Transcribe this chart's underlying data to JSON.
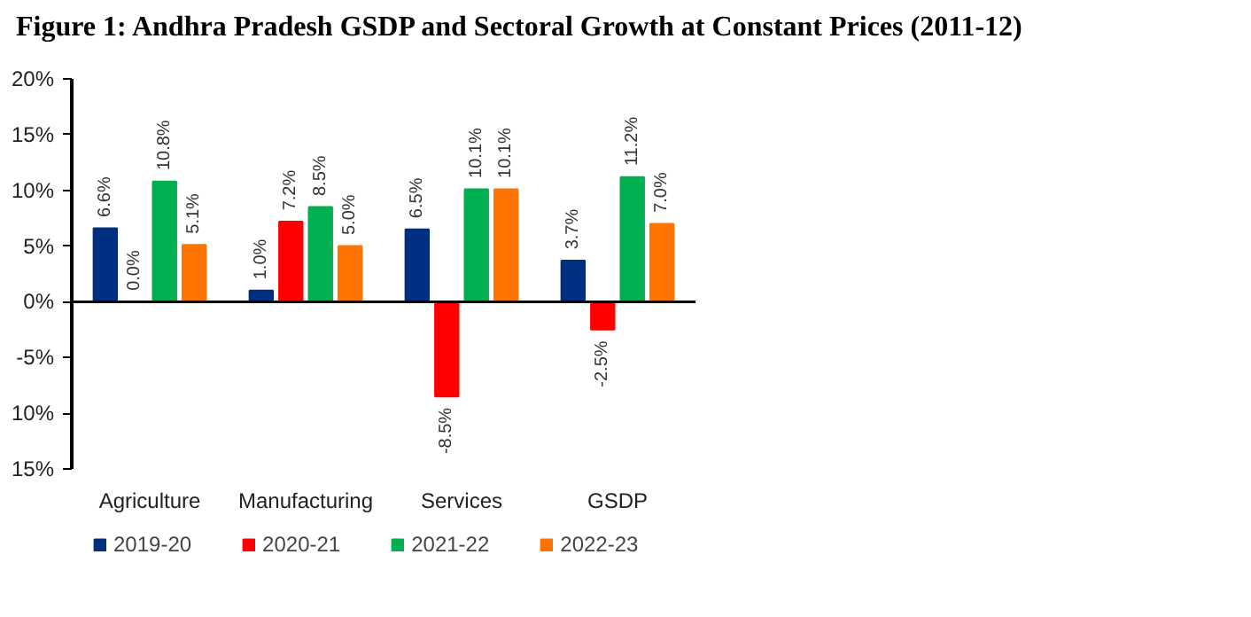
{
  "chart_data": {
    "type": "bar",
    "title": "Figure 1: Andhra Pradesh GSDP and Sectoral Growth at Constant Prices (2011-12)",
    "categories": [
      "Agriculture",
      "Manufacturing",
      "Services",
      "GSDP"
    ],
    "series": [
      {
        "name": "2019-20",
        "color": "#002f7f",
        "values": [
          6.6,
          1.0,
          6.5,
          3.7
        ],
        "value_labels": [
          "6.6%",
          "1.0%",
          "6.5%",
          "3.7%"
        ]
      },
      {
        "name": "2020-21",
        "color": "#ff0000",
        "values": [
          0.0,
          7.2,
          -8.5,
          -2.5
        ],
        "value_labels": [
          "0.0%",
          "7.2%",
          "-8.5%",
          "-2.5%"
        ]
      },
      {
        "name": "2021-22",
        "color": "#00b050",
        "values": [
          10.8,
          8.5,
          10.1,
          11.2
        ],
        "value_labels": [
          "10.8%",
          "8.5%",
          "10.1%",
          "11.2%"
        ]
      },
      {
        "name": "2022-23",
        "color": "#ff7300",
        "values": [
          5.1,
          5.0,
          10.1,
          7.0
        ],
        "value_labels": [
          "5.1%",
          "5.0%",
          "10.1%",
          "7.0%"
        ]
      }
    ],
    "ylim": [
      -15,
      20
    ],
    "yticks": [
      {
        "value": -15,
        "label": "15%"
      },
      {
        "value": -10,
        "label": "10%"
      },
      {
        "value": -5,
        "label": "-5%"
      },
      {
        "value": 0,
        "label": "0%"
      },
      {
        "value": 5,
        "label": "5%"
      },
      {
        "value": 10,
        "label": "10%"
      },
      {
        "value": 15,
        "label": "15%"
      },
      {
        "value": 20,
        "label": "20%"
      }
    ],
    "ref_lines": [
      {
        "axis": "y",
        "value": 0,
        "color": "#000000"
      }
    ],
    "legend": "bottom"
  }
}
